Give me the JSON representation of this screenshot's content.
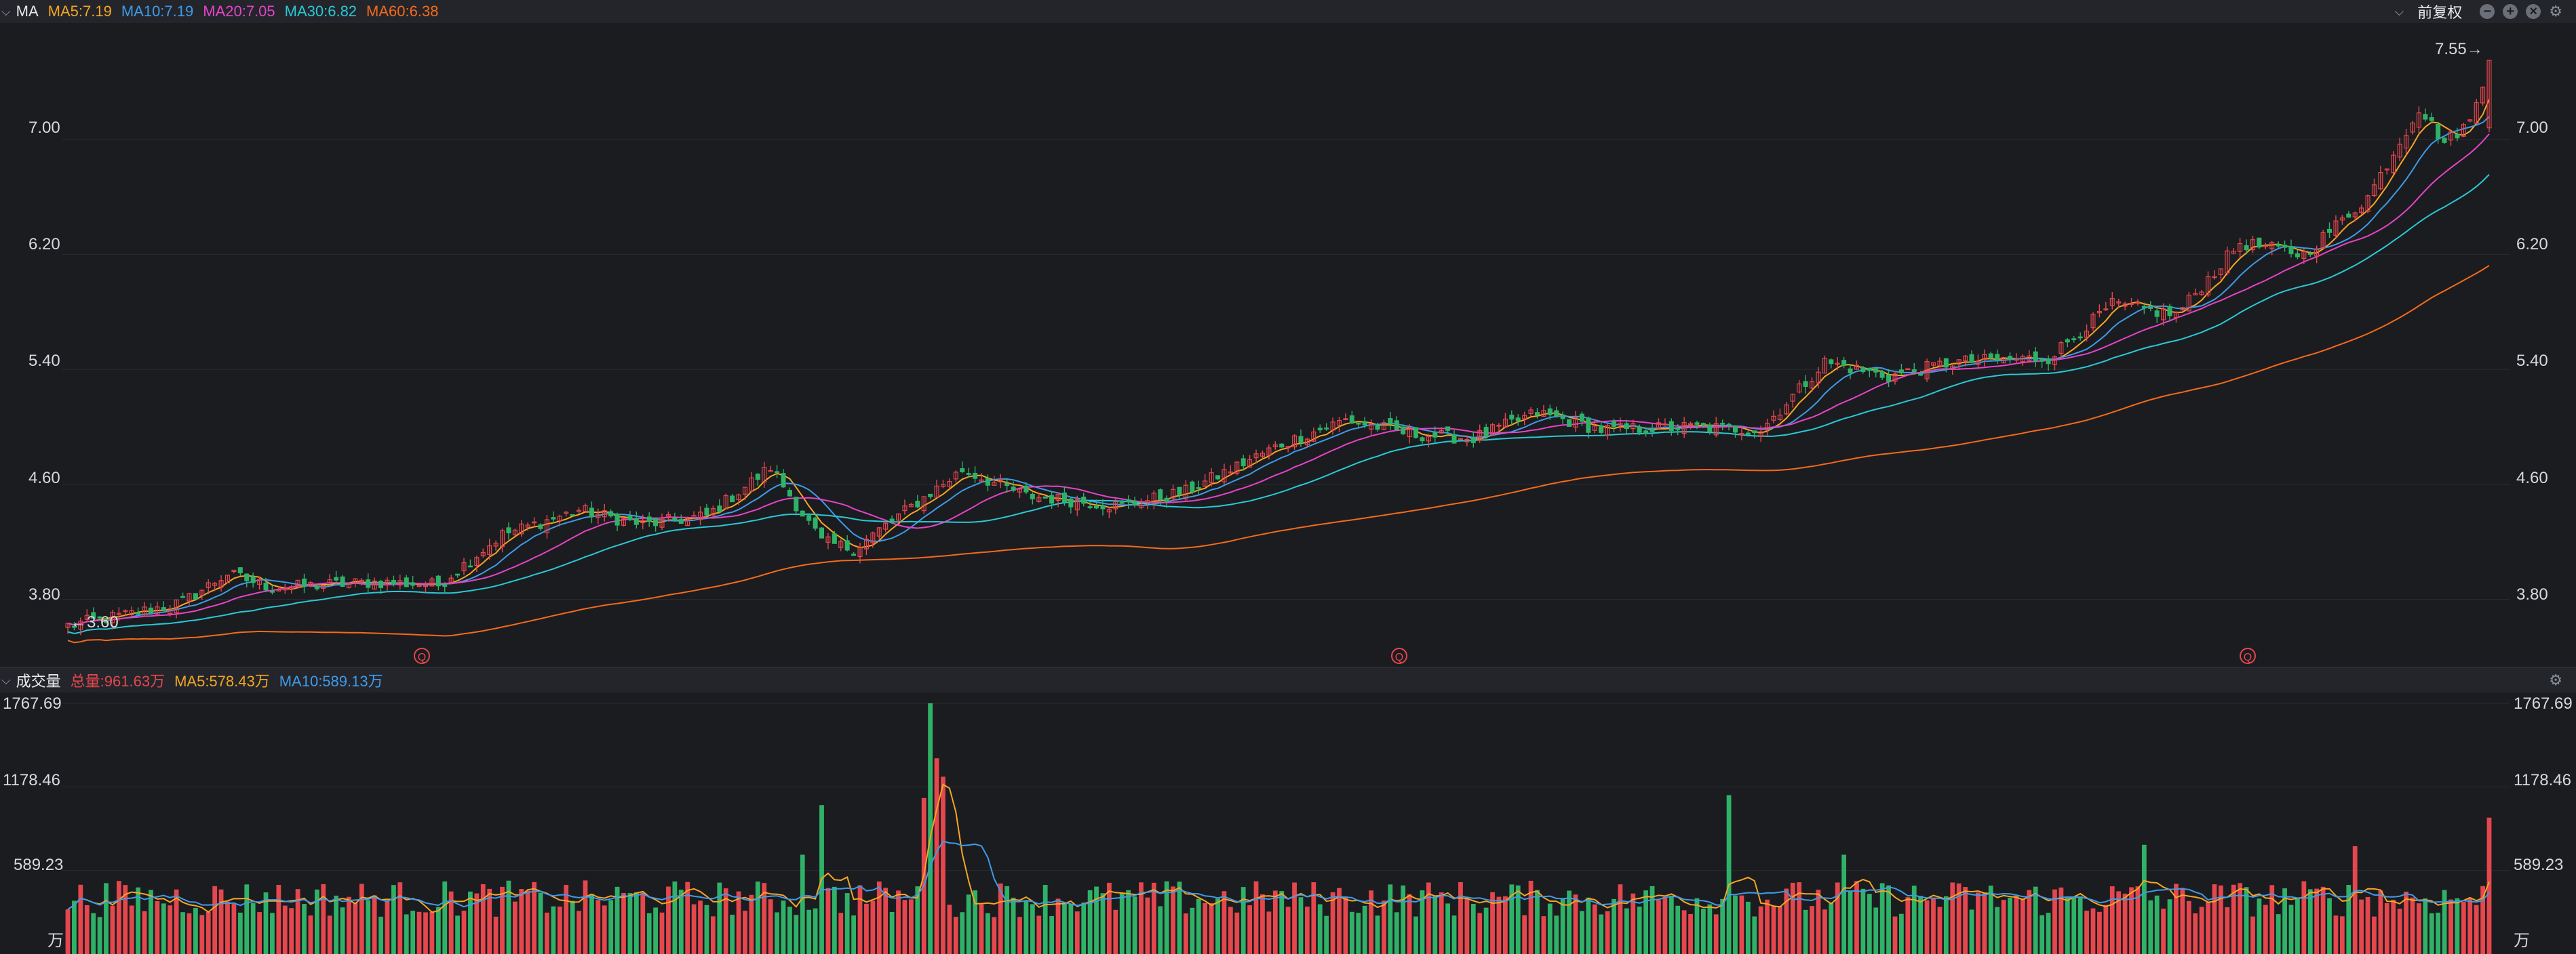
{
  "header": {
    "indicator": "MA",
    "ma_labels": [
      {
        "text": "MA5:7.19",
        "color": "#f5a623"
      },
      {
        "text": "MA10:7.19",
        "color": "#3f9be8"
      },
      {
        "text": "MA20:7.05",
        "color": "#e544c8"
      },
      {
        "text": "MA30:6.82",
        "color": "#29c9d6"
      },
      {
        "text": "MA60:6.38",
        "color": "#f56a1b"
      }
    ],
    "adjust_label": "前复权"
  },
  "price_axis": {
    "ticks": [
      "7.00",
      "6.20",
      "5.40",
      "4.60",
      "3.80"
    ],
    "max_marker": "7.55→",
    "min_marker": "←3.60",
    "event_marker": "Q"
  },
  "volume_header": {
    "title": "成交量",
    "total": "总量:961.63万",
    "ma5": "MA5:578.43万",
    "ma10": "MA10:589.13万"
  },
  "volume_axis": {
    "ticks": [
      "1767.69",
      "1178.46",
      "589.23"
    ],
    "unit": "万"
  },
  "colors": {
    "up": "#e5474d",
    "down": "#2fb267",
    "ma5": "#f5a623",
    "ma10": "#3f9be8",
    "ma20": "#e544c8",
    "ma30": "#29c9d6",
    "ma60": "#f56a1b"
  },
  "chart_data": [
    {
      "type": "candlestick",
      "title": "MA",
      "ylim": [
        3.35,
        7.8
      ],
      "y_ticks": [
        7.0,
        6.2,
        5.4,
        4.6,
        3.8
      ],
      "grid": true,
      "close_anchors": [
        [
          0,
          3.62
        ],
        [
          10,
          3.7
        ],
        [
          18,
          3.78
        ],
        [
          25,
          3.98
        ],
        [
          32,
          3.88
        ],
        [
          48,
          3.92
        ],
        [
          58,
          3.9
        ],
        [
          68,
          4.25
        ],
        [
          80,
          4.42
        ],
        [
          90,
          4.32
        ],
        [
          100,
          4.38
        ],
        [
          110,
          4.72
        ],
        [
          118,
          4.2
        ],
        [
          123,
          4.15
        ],
        [
          130,
          4.38
        ],
        [
          140,
          4.7
        ],
        [
          150,
          4.52
        ],
        [
          165,
          4.45
        ],
        [
          175,
          4.55
        ],
        [
          190,
          4.88
        ],
        [
          200,
          5.05
        ],
        [
          210,
          4.95
        ],
        [
          220,
          4.92
        ],
        [
          230,
          5.1
        ],
        [
          240,
          4.98
        ],
        [
          255,
          5.0
        ],
        [
          265,
          4.98
        ],
        [
          275,
          5.45
        ],
        [
          285,
          5.35
        ],
        [
          295,
          5.45
        ],
        [
          310,
          5.48
        ],
        [
          320,
          5.85
        ],
        [
          330,
          5.78
        ],
        [
          340,
          6.28
        ],
        [
          350,
          6.2
        ],
        [
          360,
          6.6
        ],
        [
          368,
          7.22
        ],
        [
          372,
          6.98
        ],
        [
          376,
          7.12
        ],
        [
          379,
          7.55
        ]
      ],
      "ma_latest": {
        "MA5": 7.19,
        "MA10": 7.19,
        "MA20": 7.05,
        "MA30": 6.82,
        "MA60": 6.38
      },
      "max_price": 7.55,
      "min_price": 3.6
    },
    {
      "type": "bar",
      "title": "成交量",
      "unit": "万",
      "ylim": [
        0,
        1767.69
      ],
      "y_ticks": [
        1767.69,
        1178.46,
        589.23
      ],
      "total_latest": 961.63,
      "ma_latest": {
        "MA5": 578.43,
        "MA10": 589.13
      },
      "spikes": [
        [
          115,
          700
        ],
        [
          118,
          1050
        ],
        [
          134,
          1100
        ],
        [
          135,
          1767.69
        ],
        [
          136,
          1380
        ],
        [
          137,
          1250
        ],
        [
          260,
          1120
        ],
        [
          278,
          700
        ],
        [
          325,
          770
        ],
        [
          358,
          760
        ],
        [
          379,
          961.63
        ]
      ]
    }
  ]
}
